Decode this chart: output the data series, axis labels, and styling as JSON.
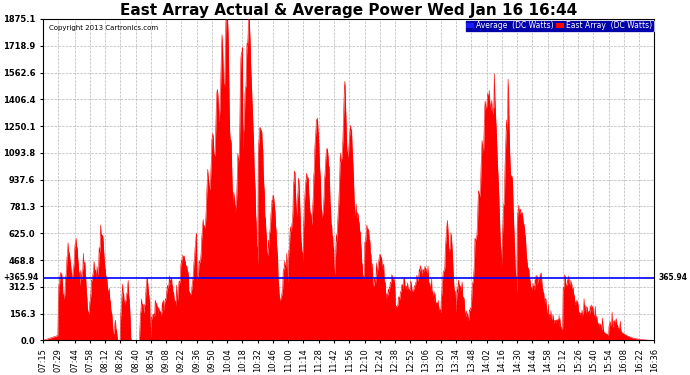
{
  "title": "East Array Actual & Average Power Wed Jan 16 16:44",
  "copyright": "Copyright 2013 Cartronics.com",
  "legend_labels": [
    "Average  (DC Watts)",
    "East Array  (DC Watts)"
  ],
  "legend_colors": [
    "#0000ff",
    "#ff0000"
  ],
  "average_value": 365.94,
  "ylim": [
    0,
    1875.1
  ],
  "yticks": [
    0.0,
    156.3,
    312.5,
    468.8,
    625.0,
    781.3,
    937.6,
    1093.8,
    1250.1,
    1406.4,
    1562.6,
    1718.9,
    1875.1
  ],
  "background_color": "#ffffff",
  "plot_bg_color": "#ffffff",
  "grid_color": "#888888",
  "fill_color": "#ff0000",
  "avg_line_color": "#0000ff",
  "title_fontsize": 11,
  "x_tick_labels": [
    "07:15",
    "07:29",
    "07:44",
    "07:58",
    "08:12",
    "08:26",
    "08:40",
    "08:54",
    "09:08",
    "09:22",
    "09:36",
    "09:50",
    "10:04",
    "10:18",
    "10:32",
    "10:46",
    "11:00",
    "11:14",
    "11:28",
    "11:42",
    "11:56",
    "12:10",
    "12:24",
    "12:38",
    "12:52",
    "13:06",
    "13:20",
    "13:34",
    "13:48",
    "14:02",
    "14:16",
    "14:30",
    "14:44",
    "14:58",
    "15:12",
    "15:26",
    "15:40",
    "15:54",
    "16:08",
    "16:22",
    "16:36"
  ]
}
